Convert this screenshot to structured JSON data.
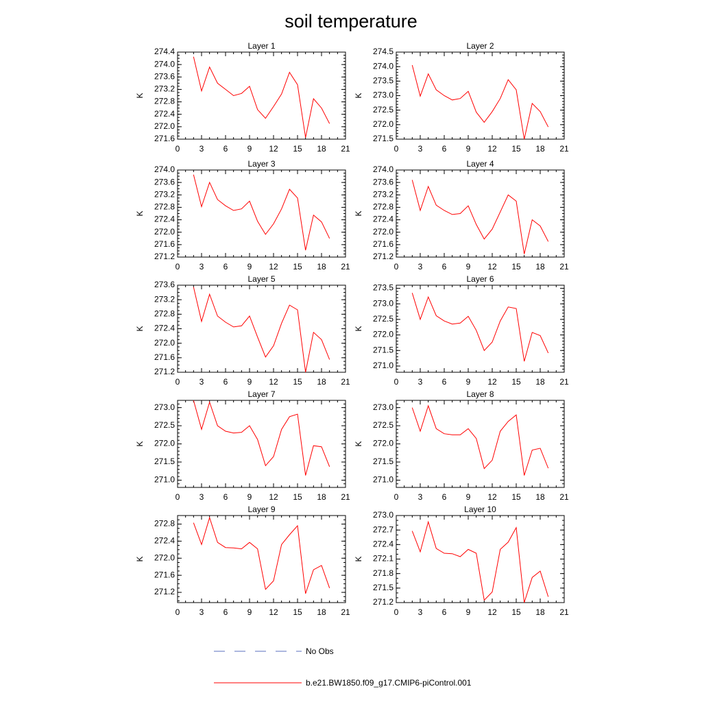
{
  "chart_data": {
    "type": "line",
    "title": "soil temperature",
    "x_ticks": [
      0,
      3,
      6,
      9,
      12,
      15,
      18,
      21
    ],
    "xlim": [
      0,
      21
    ],
    "x": [
      2,
      3,
      4,
      5,
      6,
      7,
      8,
      9,
      10,
      11,
      12,
      13,
      14,
      15,
      16,
      17,
      18,
      19
    ],
    "grid": false,
    "legend_position": "bottom-center",
    "legend": [
      {
        "name": "No Obs",
        "color": "#5a6fbf",
        "dash": "dashed"
      },
      {
        "name": "b.e21.BW1850.f09_g17.CMIP6-piControl.001",
        "color": "#ff0000",
        "dash": "solid"
      }
    ],
    "panels": [
      {
        "title": "Layer 1",
        "ylabel": "K",
        "ylim": [
          271.6,
          274.4
        ],
        "yticks": [
          "271.6",
          "272.0",
          "272.4",
          "272.8",
          "273.2",
          "273.6",
          "274.0",
          "274.4"
        ],
        "minor_step": 0.1,
        "values": [
          274.25,
          273.15,
          273.92,
          273.4,
          273.2,
          273.0,
          273.07,
          273.3,
          272.55,
          272.27,
          272.65,
          273.05,
          273.75,
          273.35,
          271.65,
          272.9,
          272.6,
          272.1
        ]
      },
      {
        "title": "Layer 2",
        "ylabel": "K",
        "ylim": [
          271.5,
          274.5
        ],
        "yticks": [
          "271.5",
          "272.0",
          "272.5",
          "273.0",
          "273.5",
          "274.0",
          "274.5"
        ],
        "minor_step": 0.1,
        "values": [
          274.05,
          272.98,
          273.75,
          273.2,
          273.0,
          272.85,
          272.9,
          273.15,
          272.43,
          272.08,
          272.45,
          272.9,
          273.55,
          273.2,
          271.5,
          272.73,
          272.45,
          271.92
        ]
      },
      {
        "title": "Layer 3",
        "ylabel": "K",
        "ylim": [
          271.2,
          274.0
        ],
        "yticks": [
          "271.2",
          "271.6",
          "272.0",
          "272.4",
          "272.8",
          "273.2",
          "273.6",
          "274.0"
        ],
        "minor_step": 0.1,
        "values": [
          273.85,
          272.82,
          273.6,
          273.05,
          272.85,
          272.7,
          272.75,
          273.0,
          272.35,
          271.93,
          272.27,
          272.75,
          273.38,
          273.1,
          271.42,
          272.55,
          272.33,
          271.8
        ]
      },
      {
        "title": "Layer 4",
        "ylabel": "K",
        "ylim": [
          271.2,
          274.0
        ],
        "yticks": [
          "271.2",
          "271.6",
          "272.0",
          "272.4",
          "272.8",
          "273.2",
          "273.6",
          "274.0"
        ],
        "minor_step": 0.1,
        "values": [
          273.68,
          272.7,
          273.47,
          272.87,
          272.7,
          272.57,
          272.6,
          272.85,
          272.25,
          271.78,
          272.1,
          272.65,
          273.2,
          273.0,
          271.3,
          272.4,
          272.2,
          271.7
        ]
      },
      {
        "title": "Layer 5",
        "ylabel": "K",
        "ylim": [
          271.2,
          273.6
        ],
        "yticks": [
          "271.2",
          "271.6",
          "272.0",
          "272.4",
          "272.8",
          "273.2",
          "273.6"
        ],
        "minor_step": 0.1,
        "values": [
          273.55,
          272.6,
          273.35,
          272.75,
          272.58,
          272.45,
          272.48,
          272.75,
          272.17,
          271.62,
          271.93,
          272.55,
          273.05,
          272.92,
          271.2,
          272.3,
          272.1,
          271.55
        ]
      },
      {
        "title": "Layer 6",
        "ylabel": "K",
        "ylim": [
          270.8,
          273.6
        ],
        "yticks": [
          "271.0",
          "271.5",
          "272.0",
          "272.5",
          "273.0",
          "273.5"
        ],
        "minor_step": 0.1,
        "values": [
          273.35,
          272.5,
          273.22,
          272.62,
          272.45,
          272.35,
          272.38,
          272.6,
          272.15,
          271.5,
          271.77,
          272.45,
          272.9,
          272.85,
          271.15,
          272.08,
          271.98,
          271.42
        ]
      },
      {
        "title": "Layer 7",
        "ylabel": "K",
        "ylim": [
          270.8,
          273.2
        ],
        "yticks": [
          "271.0",
          "271.5",
          "272.0",
          "272.5",
          "273.0"
        ],
        "minor_step": 0.1,
        "values": [
          273.2,
          272.4,
          273.15,
          272.5,
          272.35,
          272.3,
          272.32,
          272.5,
          272.12,
          271.4,
          271.65,
          272.4,
          272.75,
          272.82,
          271.13,
          271.95,
          271.92,
          271.37
        ]
      },
      {
        "title": "Layer 8",
        "ylabel": "K",
        "ylim": [
          270.8,
          273.2
        ],
        "yticks": [
          "271.0",
          "271.5",
          "272.0",
          "272.5",
          "273.0"
        ],
        "minor_step": 0.1,
        "values": [
          273.0,
          272.35,
          273.05,
          272.42,
          272.28,
          272.25,
          272.25,
          272.42,
          272.15,
          271.32,
          271.55,
          272.35,
          272.62,
          272.8,
          271.13,
          271.83,
          271.88,
          271.33
        ]
      },
      {
        "title": "Layer 9",
        "ylabel": "K",
        "ylim": [
          270.96,
          273.0
        ],
        "yticks": [
          "271.2",
          "271.6",
          "272.0",
          "272.4",
          "272.8"
        ],
        "minor_step": 0.1,
        "values": [
          272.83,
          272.32,
          272.95,
          272.37,
          272.25,
          272.24,
          272.22,
          272.37,
          272.22,
          271.27,
          271.47,
          272.32,
          272.55,
          272.76,
          271.17,
          271.73,
          271.83,
          271.3
        ]
      },
      {
        "title": "Layer 10",
        "ylabel": "K",
        "ylim": [
          271.2,
          273.0
        ],
        "yticks": [
          "271.2",
          "271.5",
          "271.8",
          "272.1",
          "272.4",
          "272.7",
          "273.0"
        ],
        "minor_step": 0.1,
        "values": [
          272.68,
          272.25,
          272.87,
          272.32,
          272.22,
          272.21,
          272.15,
          272.3,
          272.22,
          271.25,
          271.42,
          272.3,
          272.45,
          272.75,
          271.2,
          271.72,
          271.85,
          271.32
        ]
      }
    ]
  }
}
